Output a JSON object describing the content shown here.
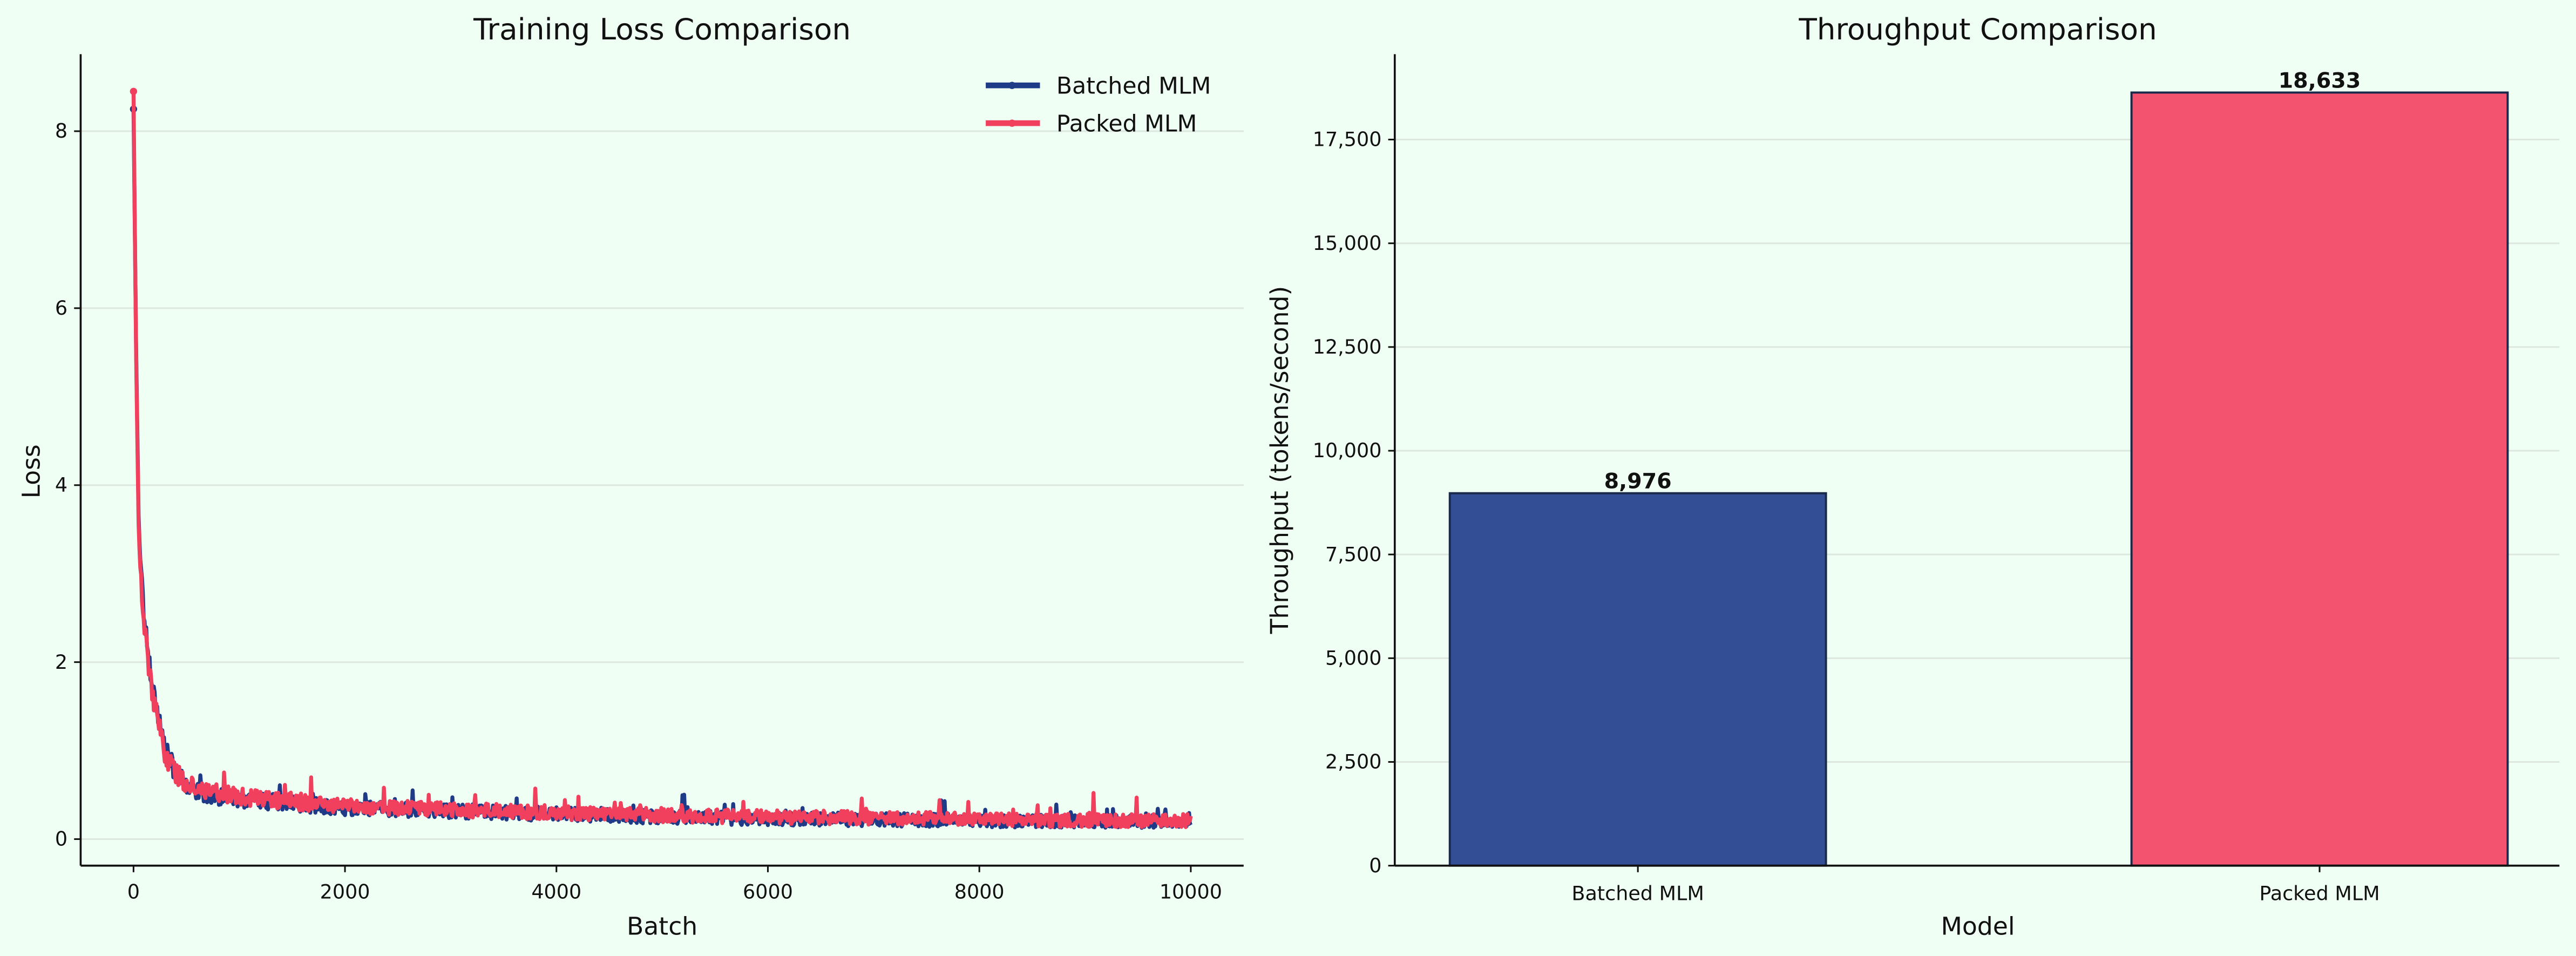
{
  "colors": {
    "background": "#effff4",
    "batched": "#1f3b87",
    "packed": "#f0405e",
    "packed_bar": "#f4536f",
    "batched_bar": "#334e94",
    "bar_edge": "#1a2a4a"
  },
  "chart_data": [
    {
      "type": "line",
      "title": "Training Loss Comparison",
      "xlabel": "Batch",
      "ylabel": "Loss",
      "xlim": [
        -500,
        10500
      ],
      "ylim": [
        -0.3,
        8.87
      ],
      "xticks": [
        "0",
        "2000",
        "4000",
        "6000",
        "8000",
        "10000"
      ],
      "yticks": [
        "0",
        "2",
        "4",
        "6",
        "8"
      ],
      "grid": "horizontal",
      "legend": "top-right",
      "note_noise": 0.12,
      "x": [
        0,
        25,
        50,
        100,
        150,
        200,
        300,
        400,
        500,
        700,
        1000,
        1500,
        2000,
        3000,
        4000,
        5000,
        6000,
        7000,
        8000,
        9000,
        10000
      ],
      "series": [
        {
          "name": "Batched MLM",
          "values": [
            8.25,
            5.5,
            3.5,
            2.5,
            2.0,
            1.6,
            1.0,
            0.75,
            0.6,
            0.5,
            0.45,
            0.4,
            0.35,
            0.32,
            0.28,
            0.25,
            0.23,
            0.22,
            0.21,
            0.2,
            0.2
          ]
        },
        {
          "name": "Packed MLM",
          "values": [
            8.45,
            5.4,
            3.4,
            2.4,
            1.9,
            1.5,
            0.95,
            0.75,
            0.62,
            0.55,
            0.48,
            0.42,
            0.38,
            0.33,
            0.3,
            0.27,
            0.25,
            0.24,
            0.22,
            0.21,
            0.21
          ]
        }
      ]
    },
    {
      "type": "bar",
      "title": "Throughput Comparison",
      "xlabel": "Model",
      "ylabel": "Throughput (tokens/second)",
      "ylim": [
        0,
        19557
      ],
      "yticks": [
        "0",
        "2,500",
        "5,000",
        "7,500",
        "10,000",
        "12,500",
        "15,000",
        "17,500"
      ],
      "categories": [
        "Batched MLM",
        "Packed MLM"
      ],
      "values": [
        8976,
        18633
      ],
      "data_labels": [
        "8,976",
        "18,633"
      ],
      "grid": "horizontal"
    }
  ]
}
